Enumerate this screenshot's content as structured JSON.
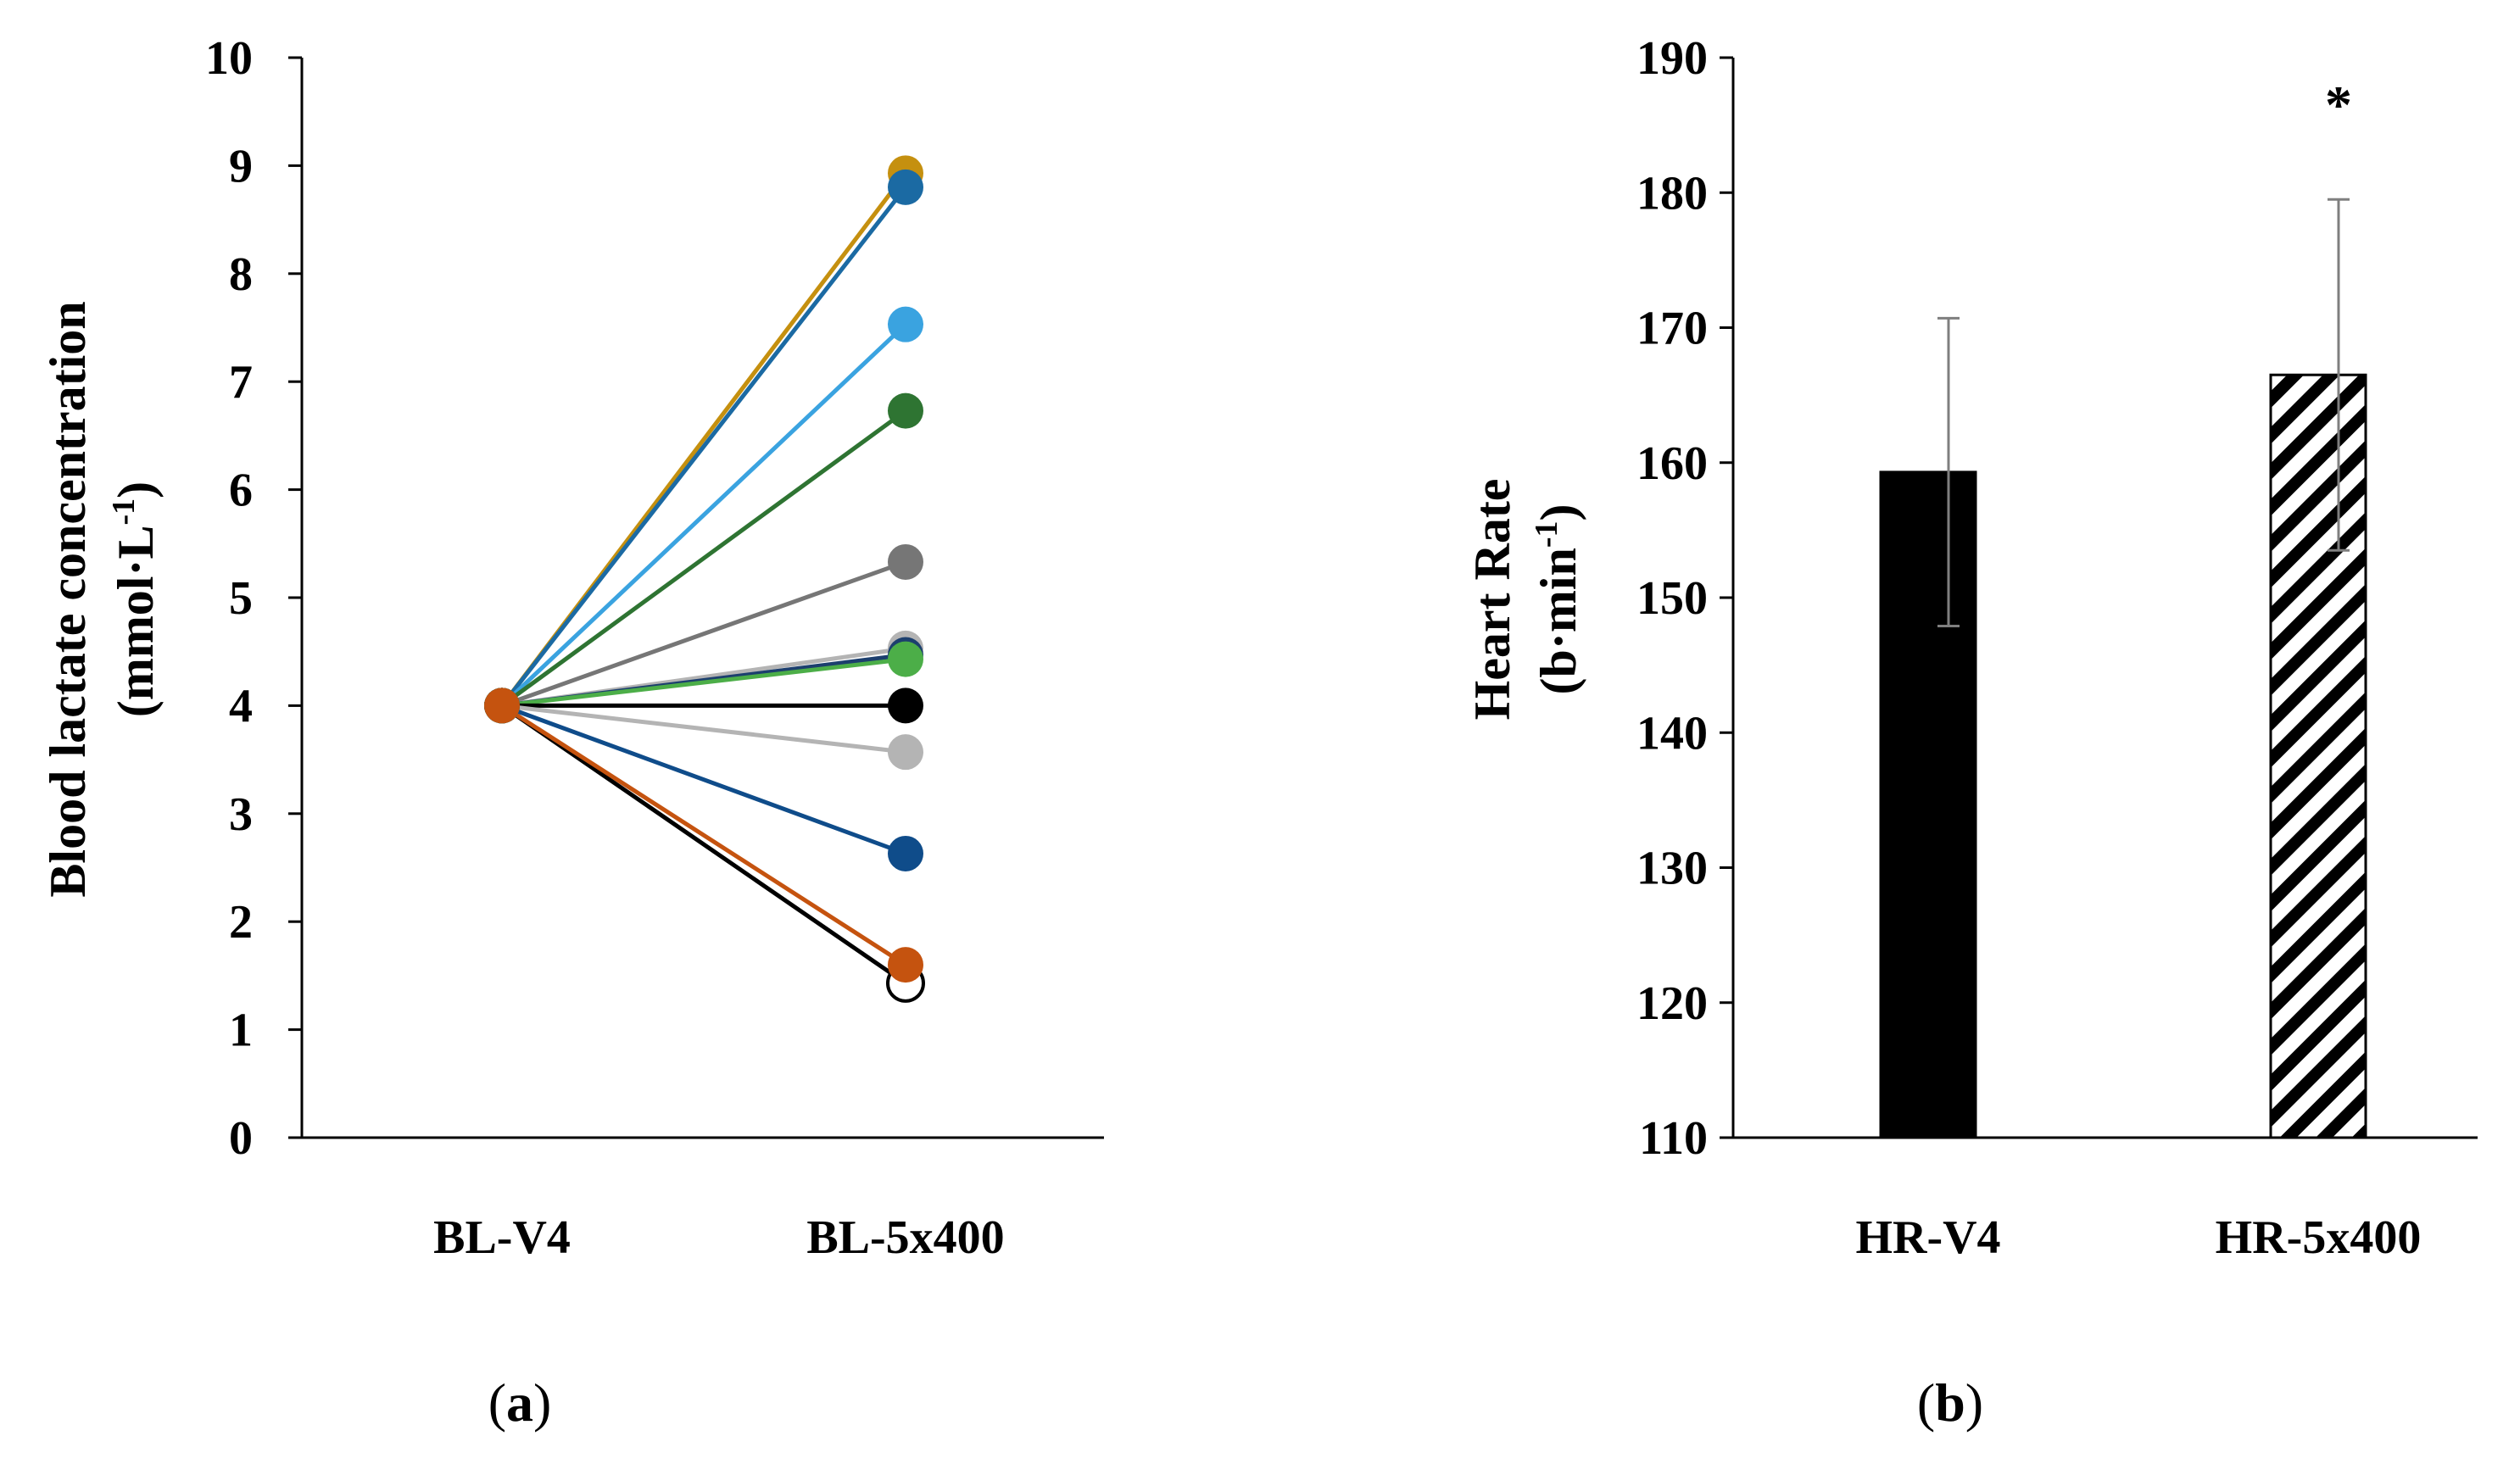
{
  "chart_data": [
    {
      "type": "line",
      "panel_label": "a",
      "ylabel_line1": "Blood lactate concentration",
      "ylabel_line2_prefix": "(mmol·L",
      "ylabel_line2_sup": "-1",
      "ylabel_line2_suffix": ")",
      "categories": [
        "BL-V4",
        "BL-5x400"
      ],
      "ylim": [
        0,
        10
      ],
      "yticks": [
        "0",
        "1",
        "2",
        "3",
        "4",
        "5",
        "6",
        "7",
        "8",
        "9",
        "10"
      ],
      "series": [
        {
          "name": "subject-1",
          "color": "#c5900f",
          "values": [
            4.0,
            8.93
          ]
        },
        {
          "name": "subject-2",
          "color": "#1b6aa3",
          "values": [
            4.0,
            8.8
          ]
        },
        {
          "name": "subject-3",
          "color": "#3aa3e0",
          "values": [
            4.0,
            7.53
          ]
        },
        {
          "name": "subject-4",
          "color": "#2e7432",
          "values": [
            4.0,
            6.73
          ]
        },
        {
          "name": "subject-5",
          "color": "#767676",
          "values": [
            4.0,
            5.33
          ]
        },
        {
          "name": "subject-6",
          "color": "#b4b4b4",
          "values": [
            4.0,
            4.53
          ]
        },
        {
          "name": "subject-7",
          "color": "#1c3f6e",
          "values": [
            4.0,
            4.47
          ]
        },
        {
          "name": "subject-8",
          "color": "#4cae48",
          "values": [
            4.0,
            4.43
          ]
        },
        {
          "name": "subject-9",
          "color": "#000000",
          "values": [
            4.0,
            4.0
          ]
        },
        {
          "name": "subject-10",
          "color": "#b4b4b4",
          "values": [
            4.0,
            3.57
          ]
        },
        {
          "name": "subject-11",
          "color": "#0f4c8a",
          "values": [
            4.0,
            2.63
          ]
        },
        {
          "name": "subject-12",
          "color": "#ffffff",
          "values": [
            4.0,
            1.43
          ]
        },
        {
          "name": "subject-13",
          "color": "#c5530f",
          "values": [
            4.0,
            1.6
          ]
        }
      ]
    },
    {
      "type": "bar",
      "panel_label": "b",
      "ylabel_line1": "Heart Rate",
      "ylabel_line2_prefix": "(b·min",
      "ylabel_line2_sup": "-1",
      "ylabel_line2_suffix": ")",
      "categories": [
        "HR-V4",
        "HR-5x400"
      ],
      "values": [
        159.3,
        166.5
      ],
      "errors": [
        11.4,
        13.0
      ],
      "fills": [
        "solid-black",
        "diagonal-hatch"
      ],
      "ylim": [
        110,
        190
      ],
      "yticks": [
        "110",
        "120",
        "130",
        "140",
        "150",
        "160",
        "170",
        "180",
        "190"
      ],
      "annotation": "*"
    }
  ]
}
